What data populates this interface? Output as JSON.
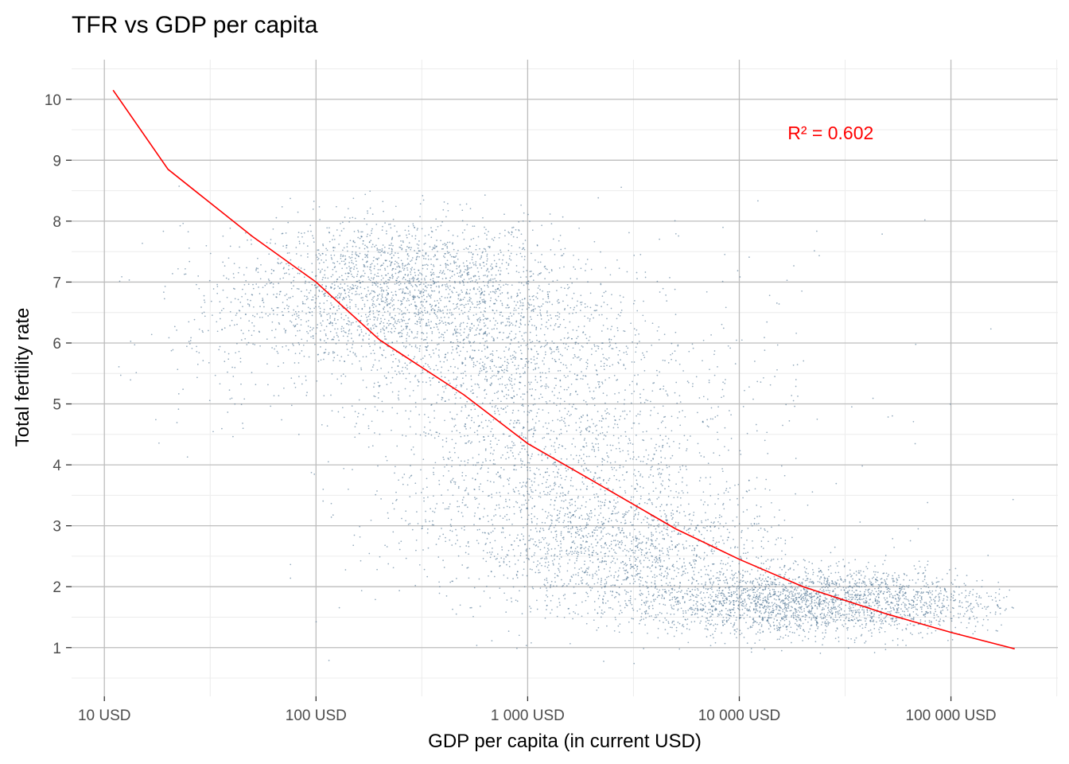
{
  "chart_data": {
    "type": "scatter",
    "title": "TFR vs GDP per capita",
    "xlabel": "GDP per capita (in current USD)",
    "ylabel": "Total fertility rate",
    "x_scale": "log10",
    "xlim": [
      7,
      320000
    ],
    "ylim": [
      0.2,
      10.65
    ],
    "x_ticks": [
      {
        "value": 10,
        "label": "10 USD"
      },
      {
        "value": 100,
        "label": "100 USD"
      },
      {
        "value": 1000,
        "label": "1 000 USD"
      },
      {
        "value": 10000,
        "label": "10 000 USD"
      },
      {
        "value": 100000,
        "label": "100 000 USD"
      }
    ],
    "y_ticks": [
      {
        "value": 1,
        "label": "1"
      },
      {
        "value": 2,
        "label": "2"
      },
      {
        "value": 3,
        "label": "3"
      },
      {
        "value": 4,
        "label": "4"
      },
      {
        "value": 5,
        "label": "5"
      },
      {
        "value": 6,
        "label": "6"
      },
      {
        "value": 7,
        "label": "7"
      },
      {
        "value": 8,
        "label": "8"
      },
      {
        "value": 9,
        "label": "9"
      },
      {
        "value": 10,
        "label": "10"
      }
    ],
    "grid": true,
    "colors": {
      "points": "#4a6f8f",
      "fit_line": "#ff0000",
      "grid_major": "#bdbdbd",
      "grid_minor": "#ececec"
    },
    "annotation": {
      "text": "R² = 0.602",
      "x": 27000,
      "y": 9.45,
      "color": "#ff0000"
    },
    "fit_line": {
      "type": "quadratic in log10(x)",
      "x": [
        11,
        20,
        50,
        100,
        200,
        500,
        1000,
        2000,
        5000,
        10000,
        20000,
        50000,
        100000,
        200000
      ],
      "y": [
        10.15,
        8.85,
        7.75,
        7.0,
        6.05,
        5.15,
        4.35,
        3.75,
        2.95,
        2.45,
        2.0,
        1.55,
        1.25,
        0.98
      ]
    },
    "scatter_clusters": [
      {
        "x": 250,
        "y": 7.0,
        "sx": 0.35,
        "sy": 0.55,
        "n": 1400
      },
      {
        "x": 600,
        "y": 6.2,
        "sx": 0.35,
        "sy": 0.8,
        "n": 1300
      },
      {
        "x": 1500,
        "y": 4.2,
        "sx": 0.4,
        "sy": 0.9,
        "n": 1100
      },
      {
        "x": 3000,
        "y": 2.6,
        "sx": 0.35,
        "sy": 0.55,
        "n": 1300
      },
      {
        "x": 15000,
        "y": 1.75,
        "sx": 0.35,
        "sy": 0.28,
        "n": 1700
      },
      {
        "x": 50000,
        "y": 1.75,
        "sx": 0.3,
        "sy": 0.28,
        "n": 800
      },
      {
        "x": 100,
        "y": 6.5,
        "sx": 0.3,
        "sy": 0.6,
        "n": 450
      },
      {
        "x": 30,
        "y": 5.6,
        "sx": 0.3,
        "sy": 0.9,
        "n": 70
      },
      {
        "x": 5000,
        "y": 5.5,
        "sx": 0.5,
        "sy": 1.2,
        "n": 200
      },
      {
        "x": 700,
        "y": 3.2,
        "sx": 0.35,
        "sy": 0.9,
        "n": 350
      }
    ]
  }
}
